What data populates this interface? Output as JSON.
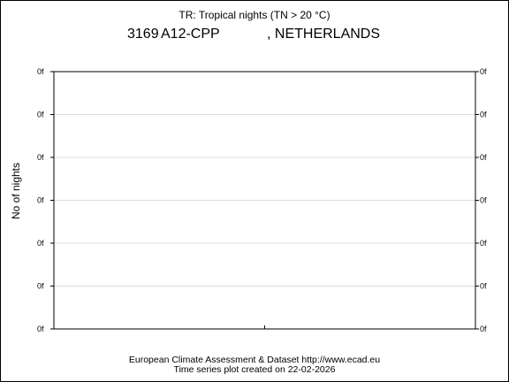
{
  "header": {
    "title": "TR: Tropical nights (TN > 20 °C)",
    "station_id": "3169",
    "station_name": "A12-CPP",
    "country": ", NETHERLANDS"
  },
  "footer": {
    "line1": "European Climate Assessment & Dataset  http://www.ecad.eu",
    "line2": "Time series plot created on 22-02-2026"
  },
  "chart_data": {
    "type": "line",
    "title": "TR: Tropical nights (TN > 20 °C)",
    "xlabel": "",
    "ylabel": "No of nights",
    "ytick_labels": [
      "0f",
      "0f",
      "0f",
      "0f",
      "0f",
      "0f",
      "0f"
    ],
    "x_tick_count": 1,
    "grid": true,
    "series": []
  }
}
